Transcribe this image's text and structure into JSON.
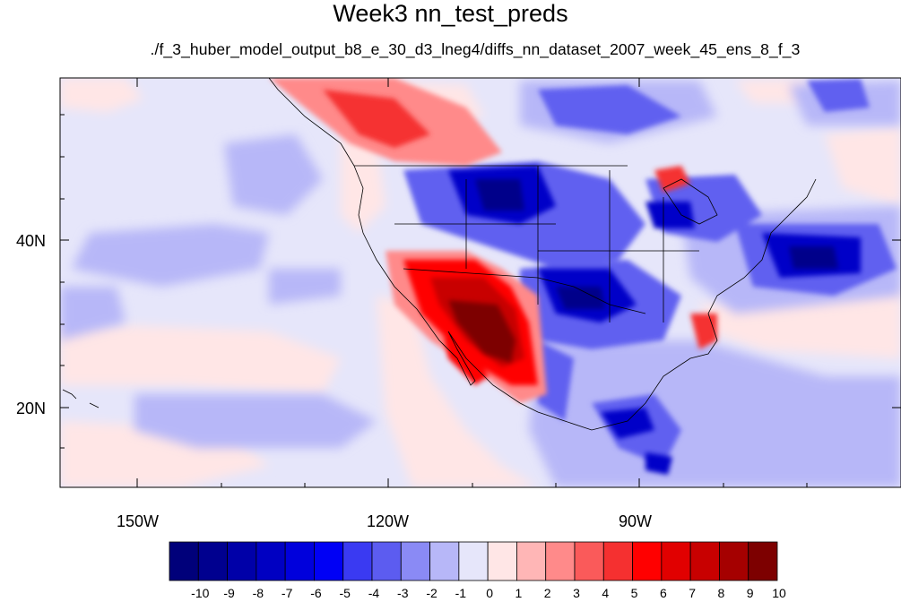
{
  "title": "Week3 nn_test_preds",
  "subtitle": "./f_3_huber_model_output_b8_e_30_d3_lneg4/diffs_nn_dataset_2007_week_45_ens_8_f_3",
  "axes": {
    "lon_labels": [
      "150W",
      "120W",
      "90W"
    ],
    "lat_labels": [
      "40N",
      "20N"
    ],
    "lon_range": [
      -159.5,
      -60.5
    ],
    "lat_range": [
      10,
      59
    ]
  },
  "colorbar": {
    "labels": [
      "-10",
      "-9",
      "-8",
      "-7",
      "-6",
      "-5",
      "-4",
      "-3",
      "-2",
      "-1",
      "0",
      "1",
      "2",
      "3",
      "4",
      "5",
      "6",
      "7",
      "8",
      "9",
      "10"
    ],
    "colors": [
      "#00007a",
      "#00008f",
      "#0000a8",
      "#0000c2",
      "#0000dc",
      "#0000f5",
      "#3a3af2",
      "#5c5cf0",
      "#8a8af5",
      "#b7b7f8",
      "#e6e6fa",
      "#ffe6e6",
      "#ffb6b6",
      "#ff8a8a",
      "#fa5a5a",
      "#f53030",
      "#ff0000",
      "#e10000",
      "#c80000",
      "#a50000",
      "#7d0000"
    ]
  }
}
